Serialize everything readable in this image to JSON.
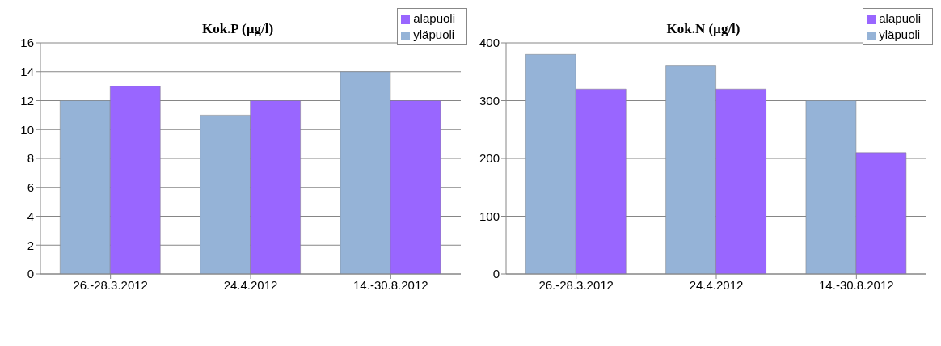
{
  "chart_data": [
    {
      "type": "bar",
      "title": "Kok.P (µg/l)",
      "categories": [
        "26.-28.3.2012",
        "24.4.2012",
        "14.-30.8.2012"
      ],
      "series": [
        {
          "name": "yläpuoli",
          "color": "#95b3d7",
          "values": [
            12,
            11,
            14
          ]
        },
        {
          "name": "alapuoli",
          "color": "#9966ff",
          "values": [
            13,
            12,
            12
          ]
        }
      ],
      "ylim": [
        0,
        16
      ],
      "yticks": [
        0,
        2,
        4,
        6,
        8,
        10,
        12,
        14,
        16
      ],
      "grid": "y",
      "legend": "top right"
    },
    {
      "type": "bar",
      "title": "Kok.N (µg/l)",
      "categories": [
        "26.-28.3.2012",
        "24.4.2012",
        "14.-30.8.2012"
      ],
      "series": [
        {
          "name": "yläpuoli",
          "color": "#95b3d7",
          "values": [
            380,
            360,
            300
          ]
        },
        {
          "name": "alapuoli",
          "color": "#9966ff",
          "values": [
            320,
            320,
            210
          ]
        }
      ],
      "ylim": [
        0,
        400
      ],
      "yticks": [
        0,
        100,
        200,
        300,
        400
      ],
      "grid": "y",
      "legend": "top right"
    }
  ]
}
